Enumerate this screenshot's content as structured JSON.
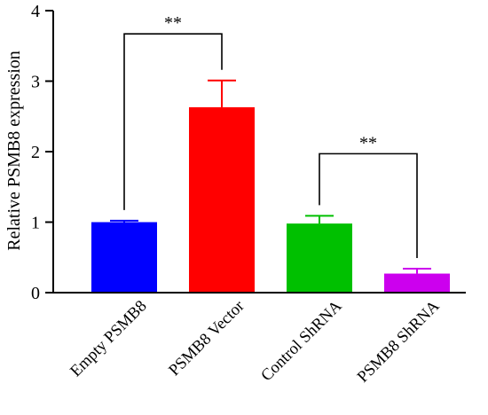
{
  "chart_data": {
    "type": "bar",
    "title": "",
    "xlabel": "",
    "ylabel": "Relative PSMB8 expression",
    "ylim": [
      0,
      4
    ],
    "yticks": [
      0,
      1,
      2,
      3,
      4
    ],
    "categories": [
      "Empty PSMB8",
      "PSMB8 Vector",
      "Control ShRNA",
      "PSMB8 ShRNA"
    ],
    "values": [
      1.0,
      2.63,
      0.98,
      0.27
    ],
    "errors": [
      0.02,
      0.38,
      0.11,
      0.07
    ],
    "colors": [
      "#0000ff",
      "#ff0000",
      "#00c000",
      "#cc00ee"
    ],
    "grid": false,
    "legend": "none",
    "significance": [
      {
        "between": [
          0,
          1
        ],
        "label": "**",
        "level": 3.67
      },
      {
        "between": [
          2,
          3
        ],
        "label": "**",
        "level": 1.97
      }
    ]
  }
}
